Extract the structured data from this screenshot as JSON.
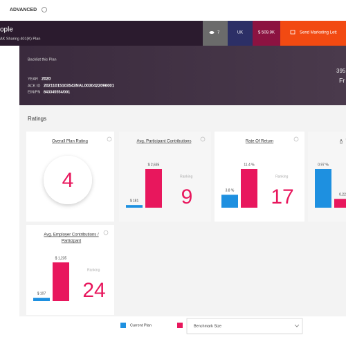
{
  "top_bar": {
    "label": "ADVANCED"
  },
  "header": {
    "name": "ople",
    "plan": "AK Sharing 401(K) Plan",
    "buttons": [
      "7",
      "UK",
      "$ 509.9K",
      "Send Marketing Lett"
    ]
  },
  "banner": {
    "title": "Backlist this Plan",
    "year_label": "YEAR",
    "year": "2020",
    "ack_label": "ACK ID",
    "ack": "20211015103543NAL0030422096001",
    "ein_label": "EIN/PN",
    "ein": "843345554/001",
    "right": [
      "395",
      "Fr"
    ]
  },
  "ratings": {
    "title": "Ratings",
    "overall": {
      "title": "Overall Plan Rating",
      "value": 4
    },
    "cards": [
      {
        "title": [
          "Avg. Participant Contributions"
        ],
        "values": [
          181,
          2635
        ],
        "value_labels": [
          "$ 181",
          "$ 2,635"
        ],
        "ranking_label": "Ranking",
        "ranking": 9
      },
      {
        "title": [
          "Rate Of Return"
        ],
        "values": [
          3.8,
          11.4
        ],
        "value_labels": [
          "3.8 %",
          "11.4 %"
        ],
        "ranking_label": "Ranking",
        "ranking": 17
      },
      {
        "title": [
          "A"
        ],
        "values": [
          0.97,
          0.22
        ],
        "value_labels": [
          "0.97 %",
          "0.22"
        ]
      },
      {
        "title": [
          "Avg. Employer Contributions /",
          "Participant"
        ],
        "values": [
          107,
          1235
        ],
        "value_labels": [
          "$ 107",
          "$ 1,235"
        ],
        "ranking_label": "Ranking",
        "ranking": 24
      }
    ]
  },
  "legend": {
    "current": "Current Plan",
    "benchmark": "Benchmark Size"
  }
}
